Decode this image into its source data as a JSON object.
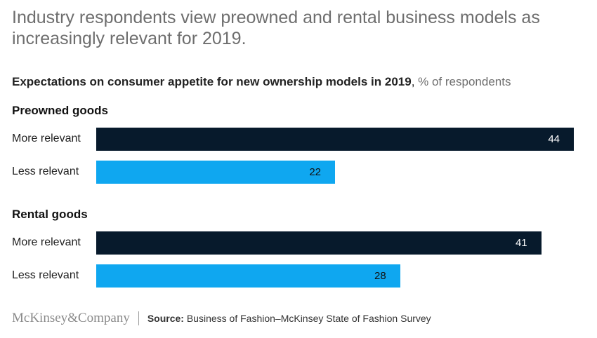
{
  "headline": "Industry respondents view preowned and rental business models as increasingly relevant for 2019.",
  "subtitle": {
    "bold": "Expectations on consumer appetite for new ownership models in 2019",
    "unit": "% of respondents"
  },
  "colors": {
    "more_relevant": "#071a2c",
    "less_relevant": "#0fa7f0",
    "more_text": "#ffffff",
    "less_text": "#111111"
  },
  "chart_data": {
    "type": "bar",
    "orientation": "horizontal",
    "xlim": [
      0,
      44
    ],
    "groups": [
      {
        "name": "Preowned goods",
        "bars": [
          {
            "label": "More relevant",
            "value": 44,
            "color_key": "more_relevant"
          },
          {
            "label": "Less relevant",
            "value": 22,
            "color_key": "less_relevant"
          }
        ]
      },
      {
        "name": "Rental goods",
        "bars": [
          {
            "label": "More relevant",
            "value": 41,
            "color_key": "more_relevant"
          },
          {
            "label": "Less relevant",
            "value": 28,
            "color_key": "less_relevant"
          }
        ]
      }
    ]
  },
  "footer": {
    "logo": "McKinsey&Company",
    "source_label": "Source:",
    "source_text": " Business of Fashion–McKinsey State of Fashion Survey"
  }
}
